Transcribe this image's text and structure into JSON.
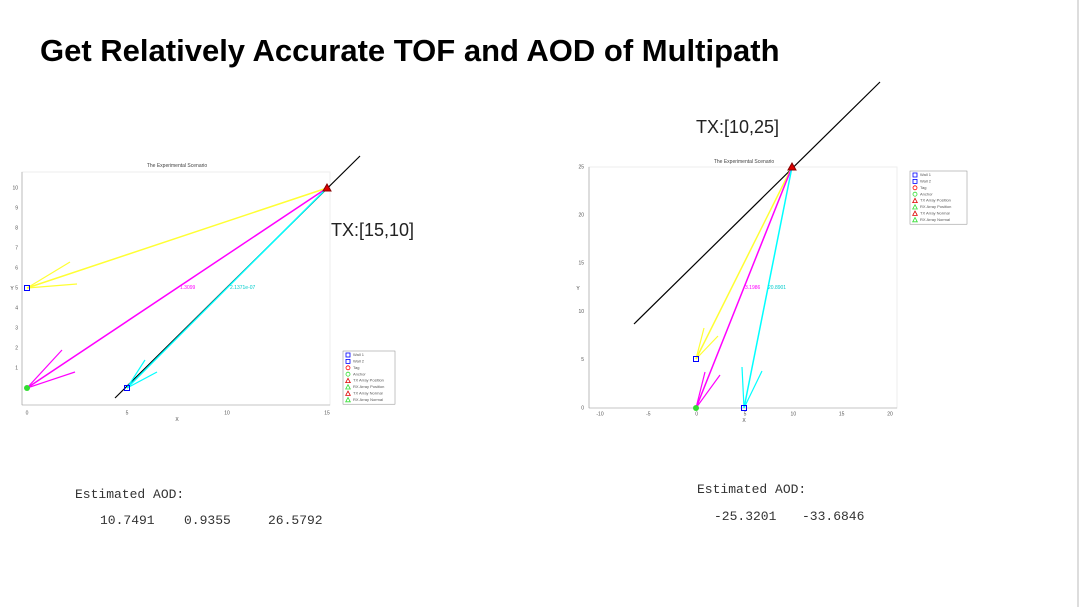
{
  "title": "Get Relatively Accurate TOF and AOD of  Multipath",
  "left": {
    "plot_title": "The Experimental Scenario",
    "x_label": "X",
    "y_label": "Y",
    "x_ticks": [
      "0",
      "5",
      "10",
      "15"
    ],
    "y_ticks": [
      "1",
      "2",
      "3",
      "4",
      "5",
      "6",
      "7",
      "8",
      "9",
      "10"
    ],
    "path_labels": [
      "1.3099",
      "2.1371e-07"
    ],
    "annotation": "TX:[15,10]",
    "estimate_label": "Estimated AOD:",
    "estimates": [
      "10.7491",
      "0.9355",
      "26.5792"
    ]
  },
  "right": {
    "plot_title": "The Experimental Scenario",
    "x_label": "X",
    "y_label": "Y",
    "x_ticks": [
      "-10",
      "-5",
      "0",
      "5",
      "10",
      "15",
      "20"
    ],
    "y_ticks": [
      "0",
      "5",
      "10",
      "15",
      "20",
      "25"
    ],
    "path_labels": [
      "3.1986",
      "20.8901"
    ],
    "annotation": "TX:[10,25]",
    "estimate_label": "Estimated AOD:",
    "estimates": [
      "-25.3201",
      "-33.6846"
    ]
  },
  "legend": [
    "Wall 1",
    "Wall 2",
    "Tag",
    "Anchor",
    "TX Array Position",
    "RX Array Position",
    "TX Array Normal",
    "RX Array Normal"
  ]
}
